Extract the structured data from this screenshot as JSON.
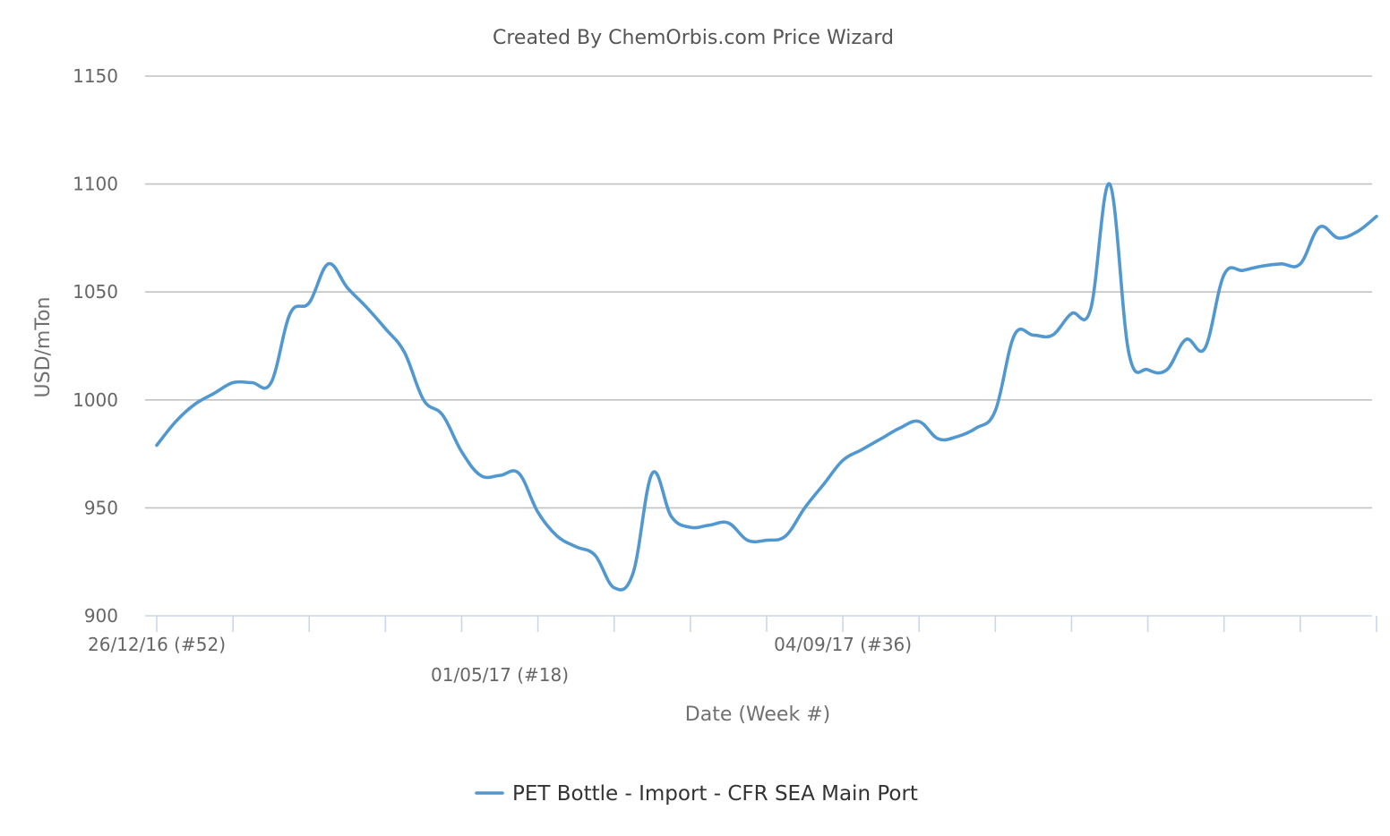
{
  "chart_data": {
    "type": "line",
    "title": "Created By ChemOrbis.com Price Wizard",
    "xlabel": "Date (Week #)",
    "ylabel": "USD/mTon",
    "ylim": [
      900,
      1150
    ],
    "yticks": [
      900,
      950,
      1000,
      1050,
      1100,
      1150
    ],
    "grid": true,
    "legend_position": "bottom-center",
    "x_tick_labels": [
      {
        "week_index": 0,
        "label": "26/12/16 (#52)",
        "row": 0
      },
      {
        "week_index": 18,
        "label": "01/05/17 (#18)",
        "row": 1
      },
      {
        "week_index": 36,
        "label": "04/09/17 (#36)",
        "row": 0
      }
    ],
    "x_tick_weeks": [
      0,
      4,
      8,
      12,
      16,
      20,
      24,
      28,
      32,
      36,
      40,
      44,
      48,
      52,
      56,
      60,
      64,
      68
    ],
    "series": [
      {
        "name": "PET Bottle - Import - CFR SEA Main Port",
        "color": "#5298d0",
        "points": [
          [
            0,
            979
          ],
          [
            1,
            990
          ],
          [
            2,
            998
          ],
          [
            3,
            1003
          ],
          [
            4,
            1008
          ],
          [
            5,
            1008
          ],
          [
            6,
            1008
          ],
          [
            7,
            1040
          ],
          [
            8,
            1045
          ],
          [
            9,
            1063
          ],
          [
            10,
            1052
          ],
          [
            11,
            1043
          ],
          [
            12,
            1033
          ],
          [
            13,
            1022
          ],
          [
            14,
            1000
          ],
          [
            15,
            993
          ],
          [
            16,
            976
          ],
          [
            17,
            965
          ],
          [
            18,
            965
          ],
          [
            19,
            966
          ],
          [
            20,
            948
          ],
          [
            21,
            937
          ],
          [
            22,
            932
          ],
          [
            23,
            928
          ],
          [
            24,
            913
          ],
          [
            25,
            920
          ],
          [
            26,
            966
          ],
          [
            27,
            946
          ],
          [
            28,
            941
          ],
          [
            29,
            942
          ],
          [
            30,
            943
          ],
          [
            31,
            935
          ],
          [
            32,
            935
          ],
          [
            33,
            937
          ],
          [
            34,
            950
          ],
          [
            35,
            961
          ],
          [
            36,
            972
          ],
          [
            37,
            977
          ],
          [
            38,
            982
          ],
          [
            39,
            987
          ],
          [
            40,
            990
          ],
          [
            41,
            982
          ],
          [
            42,
            983
          ],
          [
            43,
            987
          ],
          [
            44,
            995
          ],
          [
            45,
            1030
          ],
          [
            46,
            1030
          ],
          [
            47,
            1030
          ],
          [
            48,
            1040
          ],
          [
            49,
            1042
          ],
          [
            50,
            1100
          ],
          [
            51,
            1022
          ],
          [
            52,
            1014
          ],
          [
            53,
            1014
          ],
          [
            54,
            1028
          ],
          [
            55,
            1024
          ],
          [
            56,
            1058
          ],
          [
            57,
            1060
          ],
          [
            58,
            1062
          ],
          [
            59,
            1063
          ],
          [
            60,
            1063
          ],
          [
            61,
            1080
          ],
          [
            62,
            1075
          ],
          [
            63,
            1078
          ],
          [
            64,
            1085
          ]
        ]
      }
    ]
  }
}
